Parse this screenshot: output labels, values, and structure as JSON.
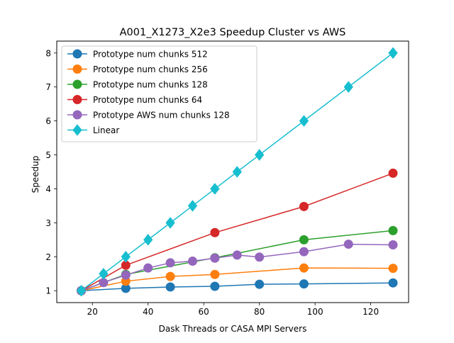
{
  "chart_data": {
    "type": "line",
    "title": "A001_X1273_X2e3 Speedup Cluster vs AWS",
    "xlabel": "Dask Threads or CASA MPI Servers",
    "ylabel": "Speedup",
    "xlim": [
      7.2,
      133.6
    ],
    "ylim": [
      0.65,
      8.35
    ],
    "xticks": [
      20,
      40,
      60,
      80,
      100,
      120
    ],
    "yticks": [
      1,
      2,
      3,
      4,
      5,
      6,
      7,
      8
    ],
    "grid": false,
    "legend_position": "upper-left",
    "series": [
      {
        "name": "Prototype num chunks 512",
        "color": "#1f77b4",
        "marker": "circle",
        "x": [
          16,
          32,
          48,
          64,
          80,
          96,
          128
        ],
        "y": [
          1.0,
          1.07,
          1.11,
          1.13,
          1.19,
          1.2,
          1.23
        ]
      },
      {
        "name": "Prototype num chunks 256",
        "color": "#ff7f0e",
        "marker": "circle",
        "x": [
          16,
          32,
          48,
          64,
          96,
          128
        ],
        "y": [
          1.0,
          1.28,
          1.42,
          1.48,
          1.67,
          1.66
        ]
      },
      {
        "name": "Prototype num chunks 128",
        "color": "#2ca02c",
        "marker": "circle",
        "x": [
          16,
          32,
          64,
          96,
          128
        ],
        "y": [
          1.0,
          1.48,
          1.97,
          2.5,
          2.77
        ]
      },
      {
        "name": "Prototype num chunks 64",
        "color": "#d62728",
        "marker": "circle",
        "x": [
          16,
          32,
          64,
          96,
          128
        ],
        "y": [
          1.0,
          1.75,
          2.71,
          3.48,
          4.46
        ]
      },
      {
        "name": "Prototype AWS num chunks 128",
        "color": "#9467bd",
        "marker": "circle",
        "x": [
          16,
          24,
          32,
          40,
          48,
          56,
          64,
          72,
          80,
          96,
          112,
          128
        ],
        "y": [
          1.0,
          1.24,
          1.46,
          1.67,
          1.82,
          1.87,
          1.96,
          2.05,
          1.99,
          2.15,
          2.37,
          2.35
        ]
      },
      {
        "name": "Linear",
        "color": "#17becf",
        "marker": "diamond",
        "x": [
          16,
          24,
          32,
          40,
          48,
          56,
          64,
          72,
          80,
          96,
          112,
          128
        ],
        "y": [
          1.0,
          1.5,
          2.0,
          2.5,
          3.0,
          3.5,
          4.0,
          4.5,
          5.0,
          6.0,
          7.0,
          8.0
        ]
      }
    ]
  }
}
